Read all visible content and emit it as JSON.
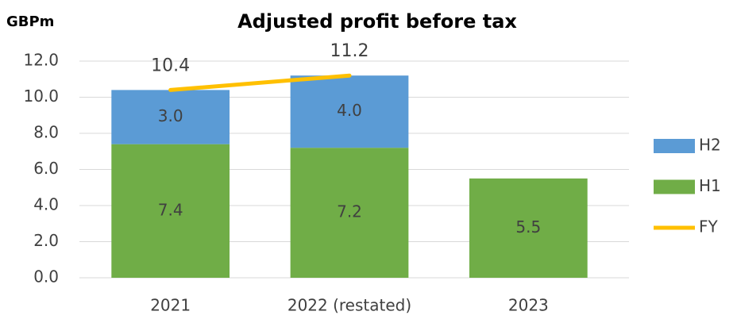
{
  "chart_data": {
    "type": "bar",
    "stacked": true,
    "title": "Adjusted profit before tax",
    "y_label": "GBPm",
    "categories": [
      "2021",
      "2022 (restated)",
      "2023"
    ],
    "series": [
      {
        "name": "H1",
        "type": "bar",
        "color": "#70ad47",
        "values": [
          7.4,
          7.2,
          5.5
        ],
        "value_labels": [
          "7.4",
          "7.2",
          "5.5"
        ]
      },
      {
        "name": "H2",
        "type": "bar",
        "color": "#5b9bd5",
        "values": [
          3.0,
          4.0,
          null
        ],
        "value_labels": [
          "3.0",
          "4.0",
          null
        ]
      },
      {
        "name": "FY",
        "type": "line",
        "color": "#ffc000",
        "values": [
          10.4,
          11.2,
          null
        ],
        "value_labels": [
          "10.4",
          "11.2",
          null
        ]
      }
    ],
    "ylim": [
      0,
      12
    ],
    "yticks": [
      {
        "value": 0,
        "label": "0.0"
      },
      {
        "value": 2,
        "label": "2.0"
      },
      {
        "value": 4,
        "label": "4.0"
      },
      {
        "value": 6,
        "label": "6.0"
      },
      {
        "value": 8,
        "label": "8.0"
      },
      {
        "value": 10,
        "label": "10.0"
      },
      {
        "value": 12,
        "label": "12.0"
      }
    ],
    "grid": true,
    "legend": "right"
  }
}
